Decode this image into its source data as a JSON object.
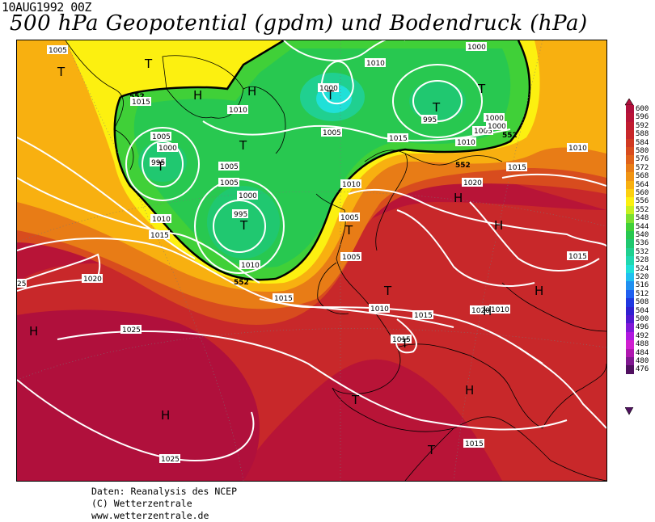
{
  "header": {
    "date": "10AUG1992 00Z",
    "title": "500 hPa Geopotential (gpdm) und Bodendruck (hPa)"
  },
  "legend": {
    "levels": [
      {
        "value": "600",
        "color": "#b0103c"
      },
      {
        "value": "596",
        "color": "#b81437"
      },
      {
        "value": "592",
        "color": "#c01c30"
      },
      {
        "value": "588",
        "color": "#c8282a"
      },
      {
        "value": "584",
        "color": "#d03a22"
      },
      {
        "value": "580",
        "color": "#d84c1e"
      },
      {
        "value": "576",
        "color": "#e0621a"
      },
      {
        "value": "572",
        "color": "#e87c16"
      },
      {
        "value": "568",
        "color": "#f09414"
      },
      {
        "value": "564",
        "color": "#f8b010"
      },
      {
        "value": "560",
        "color": "#fcd010"
      },
      {
        "value": "556",
        "color": "#fcf010"
      },
      {
        "value": "552",
        "color": "#c8f020"
      },
      {
        "value": "548",
        "color": "#7ce030"
      },
      {
        "value": "544",
        "color": "#40d038"
      },
      {
        "value": "540",
        "color": "#28c850"
      },
      {
        "value": "536",
        "color": "#20c870"
      },
      {
        "value": "532",
        "color": "#20d090"
      },
      {
        "value": "528",
        "color": "#20d8b0"
      },
      {
        "value": "524",
        "color": "#20e0d8"
      },
      {
        "value": "520",
        "color": "#20c0f0"
      },
      {
        "value": "516",
        "color": "#2090f0"
      },
      {
        "value": "512",
        "color": "#2060f0"
      },
      {
        "value": "508",
        "color": "#2038e0"
      },
      {
        "value": "504",
        "color": "#3020d0"
      },
      {
        "value": "500",
        "color": "#5018d0"
      },
      {
        "value": "496",
        "color": "#8018d8"
      },
      {
        "value": "492",
        "color": "#b018e0"
      },
      {
        "value": "488",
        "color": "#d020d0"
      },
      {
        "value": "484",
        "color": "#b018b0"
      },
      {
        "value": "480",
        "color": "#801890"
      },
      {
        "value": "476",
        "color": "#501060"
      }
    ]
  },
  "map": {
    "pressure_centers": [
      {
        "label": "T"
      },
      {
        "label": "T"
      },
      {
        "label": "H"
      },
      {
        "label": "H"
      },
      {
        "label": "T"
      },
      {
        "label": "T"
      },
      {
        "label": "T"
      },
      {
        "label": "T"
      },
      {
        "label": "T"
      },
      {
        "label": "T"
      },
      {
        "label": "H"
      },
      {
        "label": "H"
      },
      {
        "label": "T"
      },
      {
        "label": "H"
      },
      {
        "label": "H"
      },
      {
        "label": "H"
      },
      {
        "label": "T"
      },
      {
        "label": "T"
      },
      {
        "label": "H"
      },
      {
        "label": "T"
      },
      {
        "label": "H"
      },
      {
        "label": "T"
      }
    ],
    "isobar_labels": [
      "1005",
      "1015",
      "1010",
      "1000",
      "1010",
      "1000",
      "1005",
      "995",
      "1000",
      "1005",
      "1010",
      "1015",
      "995",
      "1005",
      "1000",
      "1005",
      "1010",
      "1015",
      "1010",
      "1020",
      "1015",
      "1010",
      "1005",
      "995",
      "1000",
      "1005",
      "1010",
      "1015",
      "1010",
      "1020",
      "25",
      "1025",
      "1015",
      "1010",
      "1015",
      "1020",
      "1015",
      "1025",
      "1015",
      "1005",
      "1000"
    ],
    "height_labels": [
      "552",
      "552",
      "552",
      "552"
    ]
  },
  "credits": {
    "line1": "Daten: Reanalysis des NCEP",
    "line2": "(C) Wetterzentrale",
    "line3": "www.wetterzentrale.de"
  }
}
